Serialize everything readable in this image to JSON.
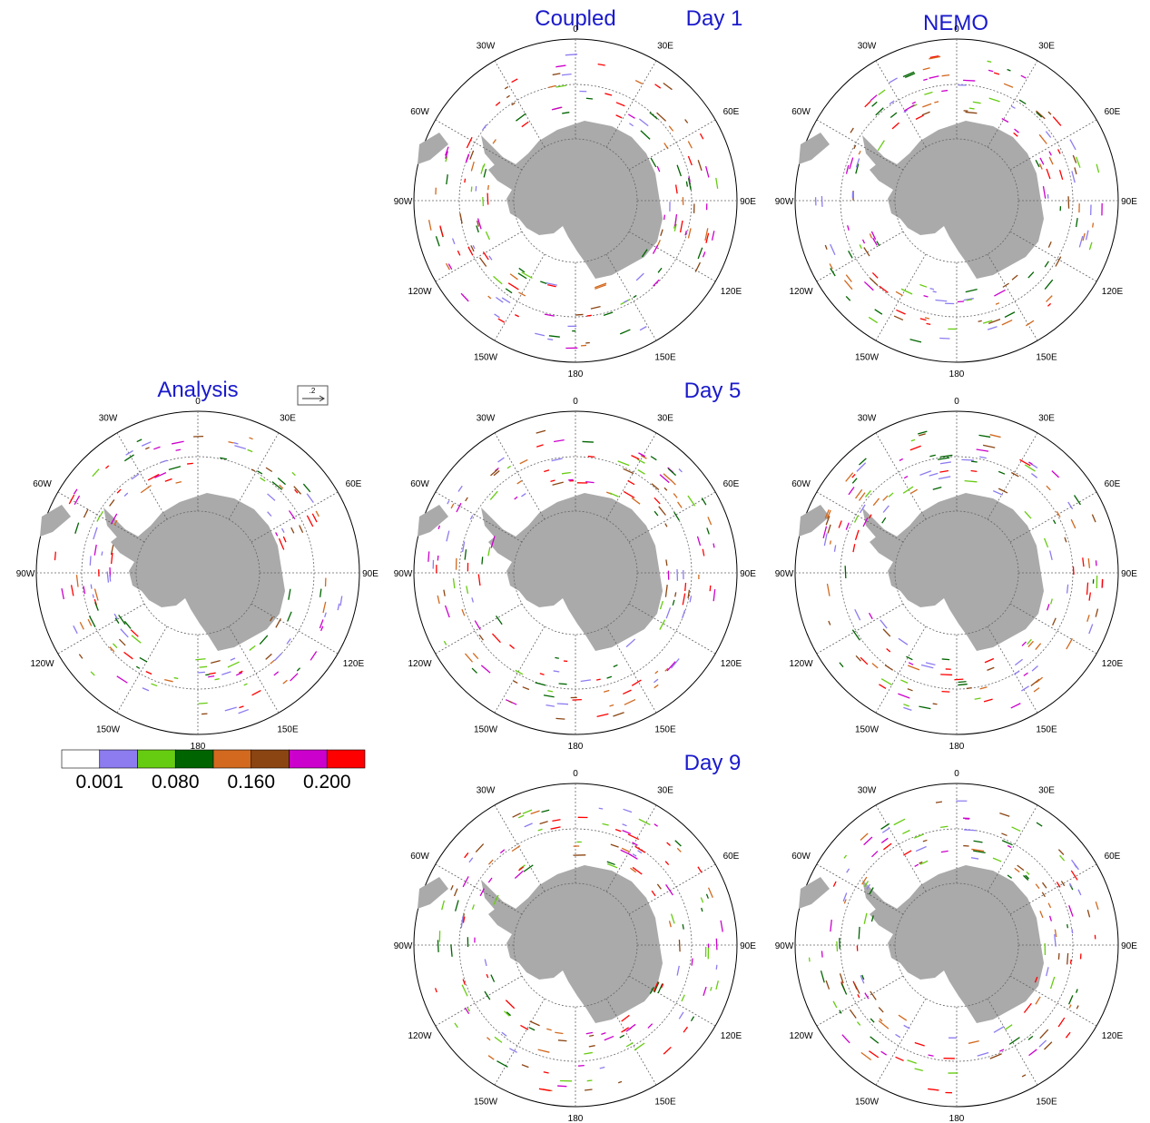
{
  "titles": {
    "coupled": "Coupled",
    "nemo": "NEMO",
    "analysis": "Analysis"
  },
  "days": [
    "Day 1",
    "Day 5",
    "Day 9"
  ],
  "reference_vector": ".2",
  "longitude_labels": [
    "0",
    "30E",
    "60E",
    "90E",
    "120E",
    "150E",
    "180",
    "150W",
    "120W",
    "90W",
    "60W",
    "30W"
  ],
  "colorbar": {
    "colors": [
      "#ffffff",
      "#8c7cf0",
      "#66cc11",
      "#006400",
      "#d2691e",
      "#8b4513",
      "#cc00cc",
      "#ff0000"
    ],
    "labels": [
      0.001,
      {
        "value": 0.08,
        "label": "0.080"
      },
      {
        "value": 0.16,
        "label": "0.160"
      },
      {
        "value": 0.2,
        "label": "0.200"
      }
    ]
  }
}
